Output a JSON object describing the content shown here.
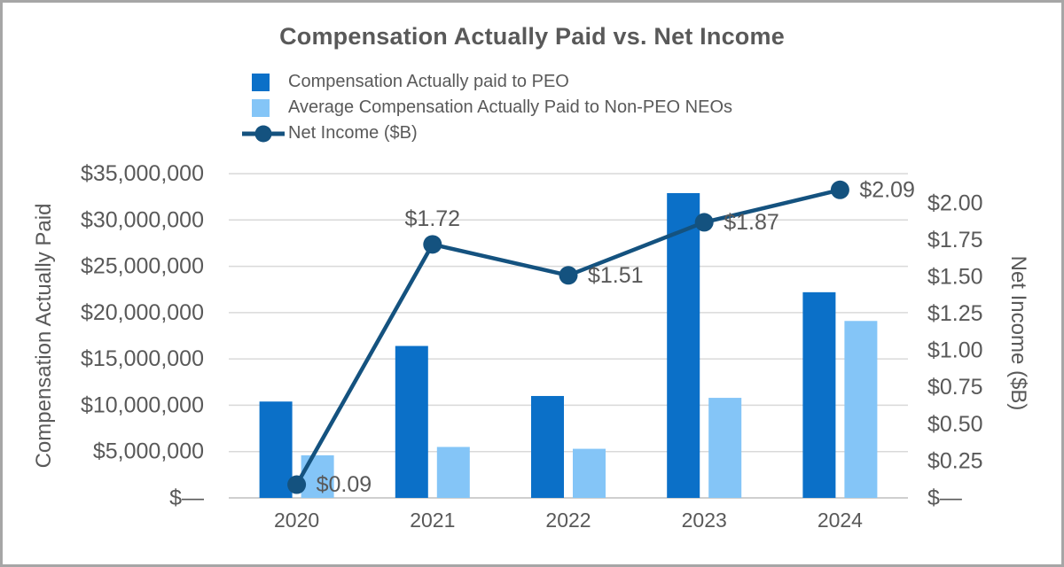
{
  "frame": {
    "border_color": "#a6a6a6",
    "background_color": "#ffffff"
  },
  "chart_data": {
    "type": "combo-bar-line",
    "title": "Compensation Actually Paid vs. Net Income",
    "categories": [
      "2020",
      "2021",
      "2022",
      "2023",
      "2024"
    ],
    "bar_series": [
      {
        "name": "Compensation Actually paid to PEO",
        "color": "#0b70c8",
        "axis": "left",
        "values": [
          10400000,
          16400000,
          11000000,
          32900000,
          22200000
        ]
      },
      {
        "name": "Average Compensation Actually Paid to Non-PEO NEOs",
        "color": "#84c5f7",
        "axis": "left",
        "values": [
          4600000,
          5500000,
          5300000,
          10800000,
          19100000
        ]
      }
    ],
    "line_series": {
      "name": "Net Income ($B)",
      "color": "#14527f",
      "axis": "right",
      "values": [
        0.09,
        1.72,
        1.51,
        1.87,
        2.09
      ],
      "data_labels": [
        "$0.09",
        "$1.72",
        "$1.51",
        "$1.87",
        "$2.09"
      ],
      "label_positions": [
        "right",
        "above",
        "right",
        "right",
        "right"
      ]
    },
    "left_axis": {
      "title": "Compensation Actually Paid",
      "min": 0,
      "max": 35000000,
      "tick_step": 5000000,
      "tick_labels": [
        "$—",
        "$5,000,000",
        "$10,000,000",
        "$15,000,000",
        "$20,000,000",
        "$25,000,000",
        "$30,000,000",
        "$35,000,000"
      ]
    },
    "right_axis": {
      "title": "Net Income ($B)",
      "min": 0,
      "scale_max": 2.2,
      "tick_step": 0.25,
      "tick_labels": [
        "$—",
        "$0.25",
        "$0.50",
        "$0.75",
        "$1.00",
        "$1.25",
        "$1.50",
        "$1.75",
        "$2.00"
      ]
    },
    "grid": true,
    "legend_position": "top-left",
    "text_color": "#595959",
    "gridline_color": "#d9d9d9"
  }
}
